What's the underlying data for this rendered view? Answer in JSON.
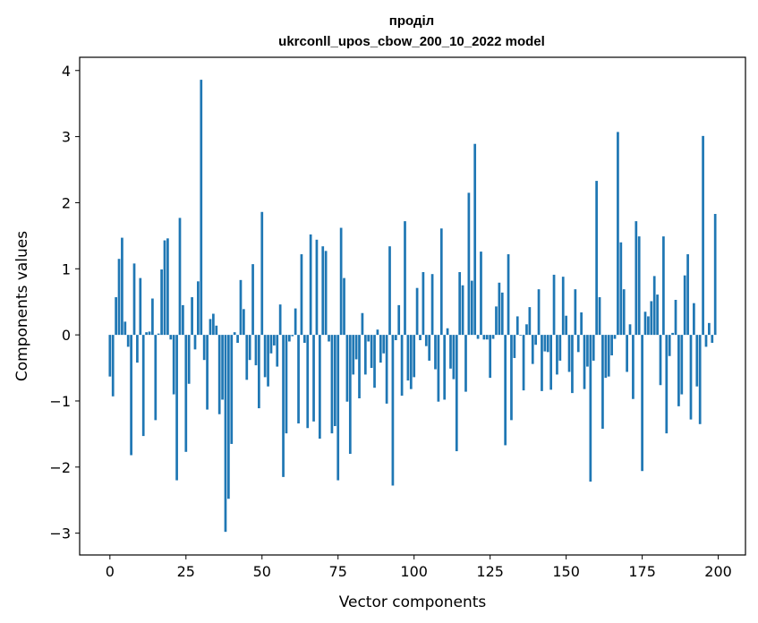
{
  "chart_data": {
    "type": "bar",
    "title": "проділ",
    "subtitle": "ukrconll_upos_cbow_200_10_2022 model",
    "xlabel": "Vector components",
    "ylabel": "Components values",
    "xlim": [
      -9.95,
      208.95
    ],
    "ylim": [
      -3.33,
      4.2
    ],
    "xticks": [
      0,
      25,
      50,
      75,
      100,
      125,
      150,
      175,
      200
    ],
    "xtick_labels": [
      "0",
      "25",
      "50",
      "75",
      "100",
      "125",
      "150",
      "175",
      "200"
    ],
    "yticks": [
      -3,
      -2,
      -1,
      0,
      1,
      2,
      3,
      4
    ],
    "ytick_labels": [
      "−3",
      "−2",
      "−1",
      "0",
      "1",
      "2",
      "3",
      "4"
    ],
    "color": "#1f77b4",
    "grid": false,
    "x": [
      0,
      1,
      2,
      3,
      4,
      5,
      6,
      7,
      8,
      9,
      10,
      11,
      12,
      13,
      14,
      15,
      16,
      17,
      18,
      19,
      20,
      21,
      22,
      23,
      24,
      25,
      26,
      27,
      28,
      29,
      30,
      31,
      32,
      33,
      34,
      35,
      36,
      37,
      38,
      39,
      40,
      41,
      42,
      43,
      44,
      45,
      46,
      47,
      48,
      49,
      50,
      51,
      52,
      53,
      54,
      55,
      56,
      57,
      58,
      59,
      60,
      61,
      62,
      63,
      64,
      65,
      66,
      67,
      68,
      69,
      70,
      71,
      72,
      73,
      74,
      75,
      76,
      77,
      78,
      79,
      80,
      81,
      82,
      83,
      84,
      85,
      86,
      87,
      88,
      89,
      90,
      91,
      92,
      93,
      94,
      95,
      96,
      97,
      98,
      99,
      100,
      101,
      102,
      103,
      104,
      105,
      106,
      107,
      108,
      109,
      110,
      111,
      112,
      113,
      114,
      115,
      116,
      117,
      118,
      119,
      120,
      121,
      122,
      123,
      124,
      125,
      126,
      127,
      128,
      129,
      130,
      131,
      132,
      133,
      134,
      135,
      136,
      137,
      138,
      139,
      140,
      141,
      142,
      143,
      144,
      145,
      146,
      147,
      148,
      149,
      150,
      151,
      152,
      153,
      154,
      155,
      156,
      157,
      158,
      159,
      160,
      161,
      162,
      163,
      164,
      165,
      166,
      167,
      168,
      169,
      170,
      171,
      172,
      173,
      174,
      175,
      176,
      177,
      178,
      179,
      180,
      181,
      182,
      183,
      184,
      185,
      186,
      187,
      188,
      189,
      190,
      191,
      192,
      193,
      194,
      195,
      196,
      197,
      198,
      199
    ],
    "values": [
      -0.63,
      -0.93,
      0.57,
      1.15,
      1.47,
      0.2,
      -0.18,
      -1.82,
      1.08,
      -0.42,
      0.86,
      -1.53,
      0.04,
      0.05,
      0.55,
      -1.29,
      0.02,
      0.99,
      1.43,
      1.46,
      -0.07,
      -0.9,
      -2.2,
      1.77,
      0.45,
      -1.77,
      -0.74,
      0.57,
      -0.22,
      0.81,
      3.86,
      -0.38,
      -1.13,
      0.24,
      0.32,
      0.14,
      -1.2,
      -0.98,
      -2.98,
      -2.48,
      -1.65,
      0.04,
      -0.12,
      0.83,
      0.39,
      -0.68,
      -0.38,
      1.07,
      -0.46,
      -1.11,
      1.86,
      -0.64,
      -0.78,
      -0.28,
      -0.16,
      -0.48,
      0.46,
      -2.15,
      -1.49,
      -0.1,
      -0.02,
      0.4,
      -1.34,
      1.22,
      -0.12,
      -1.41,
      1.52,
      -1.31,
      1.44,
      -1.57,
      1.34,
      1.27,
      -0.1,
      -1.49,
      -1.38,
      -2.2,
      1.62,
      0.86,
      -1.01,
      -1.8,
      -0.6,
      -0.37,
      -0.96,
      0.33,
      -0.6,
      -0.1,
      -0.5,
      -0.8,
      0.08,
      -0.42,
      -0.28,
      -1.04,
      1.34,
      -2.28,
      -0.08,
      0.45,
      -0.92,
      1.72,
      -0.69,
      -0.82,
      -0.64,
      0.71,
      -0.08,
      0.95,
      -0.17,
      -0.39,
      0.92,
      -0.52,
      -1.01,
      1.61,
      -0.98,
      0.1,
      -0.51,
      -0.67,
      -1.76,
      0.95,
      0.75,
      -0.86,
      2.15,
      0.82,
      2.89,
      -0.06,
      1.26,
      -0.07,
      -0.07,
      -0.65,
      -0.06,
      0.43,
      0.79,
      0.64,
      -1.67,
      1.22,
      -1.29,
      -0.35,
      0.28,
      -0.01,
      -0.84,
      0.16,
      0.42,
      -0.44,
      -0.15,
      0.69,
      -0.85,
      -0.25,
      -0.26,
      -0.83,
      0.91,
      -0.6,
      -0.39,
      0.88,
      0.29,
      -0.56,
      -0.88,
      0.69,
      -0.26,
      0.34,
      -0.82,
      -0.48,
      -2.22,
      -0.39,
      2.33,
      0.57,
      -1.42,
      -0.65,
      -0.63,
      -0.31,
      -0.06,
      3.07,
      1.4,
      0.69,
      -0.56,
      0.16,
      -0.97,
      1.72,
      1.49,
      -2.06,
      0.35,
      0.28,
      0.51,
      0.89,
      0.61,
      -0.76,
      1.49,
      -1.49,
      -0.32,
      0.03,
      0.53,
      -1.08,
      -0.9,
      0.9,
      1.22,
      -1.28,
      0.48,
      -0.78,
      -1.35,
      3.01,
      -0.18,
      0.18,
      -0.12,
      1.83
    ]
  }
}
